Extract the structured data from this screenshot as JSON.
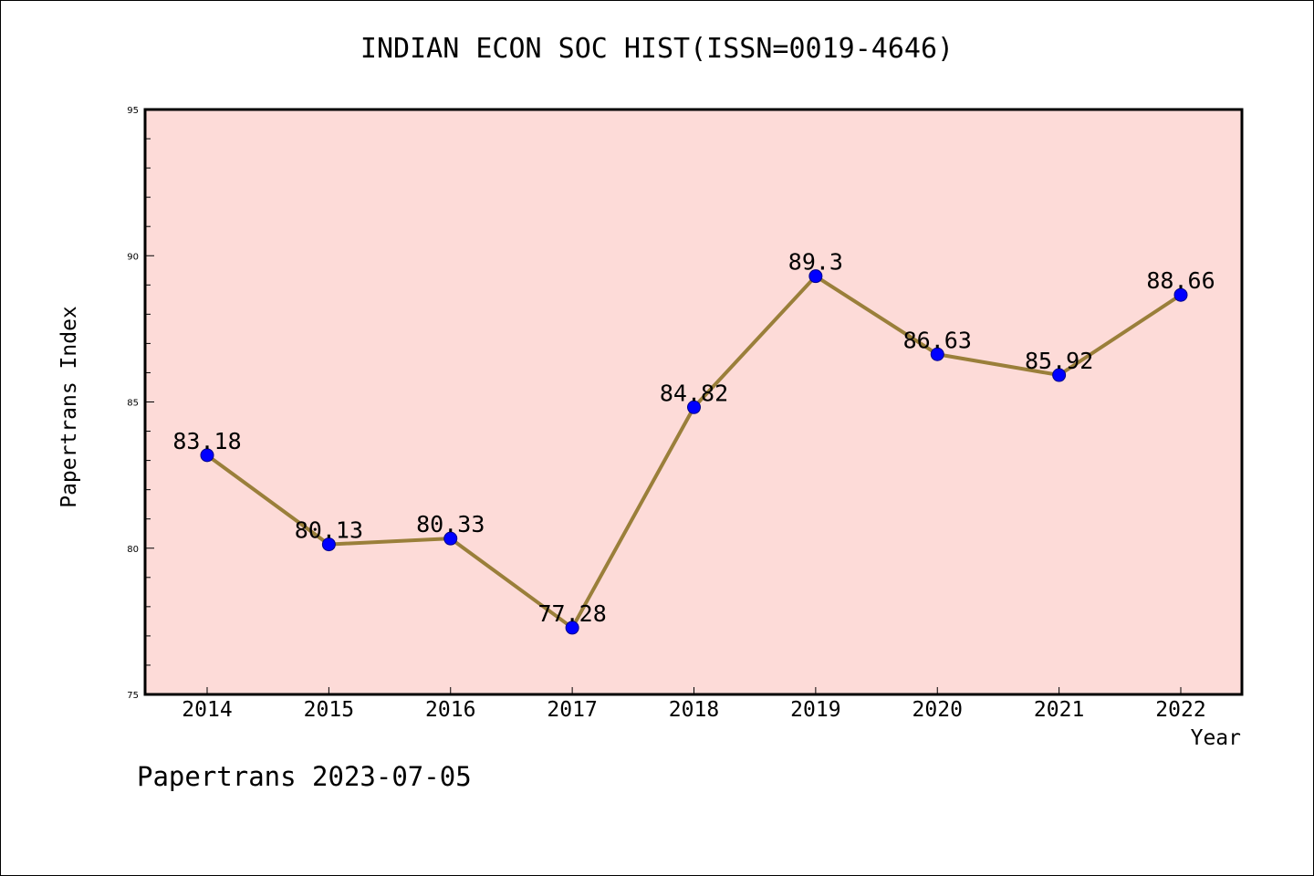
{
  "title": "INDIAN ECON SOC HIST(ISSN=0019-4646)",
  "footer": "Papertrans 2023-07-05",
  "colors": {
    "plot_background": "#fddbd8",
    "line": "#9a7f3a",
    "marker": "#0000ff"
  },
  "chart_data": {
    "type": "line",
    "title": "INDIAN ECON SOC HIST(ISSN=0019-4646)",
    "xlabel": "Year",
    "ylabel": "Papertrans Index",
    "categories": [
      "2014",
      "2015",
      "2016",
      "2017",
      "2018",
      "2019",
      "2020",
      "2021",
      "2022"
    ],
    "series": [
      {
        "values": [
          83.18,
          80.13,
          80.33,
          77.28,
          84.82,
          89.3,
          86.63,
          85.92,
          88.66
        ],
        "labels": [
          "83.18",
          "80.13",
          "80.33",
          "77.28",
          "84.82",
          "89.3",
          "86.63",
          "85.92",
          "88.66"
        ]
      }
    ],
    "ylim": [
      75,
      95
    ],
    "yticks": [
      "75",
      "80",
      "85",
      "90",
      "95"
    ],
    "grid": false,
    "legend": "none"
  }
}
